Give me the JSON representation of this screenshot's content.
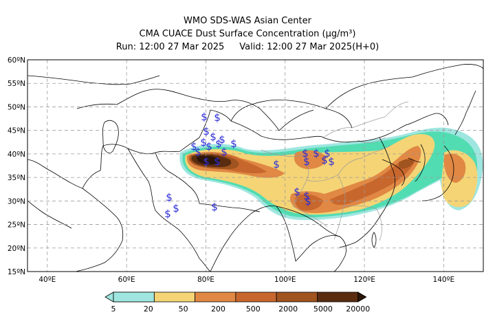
{
  "title": {
    "line1": "WMO SDS-WAS Asian Center",
    "line2": "CMA CUACE Dust Surface Concentration (μg/m³)",
    "run": "Run: 12:00 27 Mar 2025",
    "valid": "Valid: 12:00 27 Mar 2025(H+0)"
  },
  "map": {
    "lat_labels": [
      "60ºN",
      "55ºN",
      "50ºN",
      "45ºN",
      "40ºN",
      "35ºN",
      "30ºN",
      "25ºN",
      "20ºN",
      "15ºN"
    ],
    "lon_labels": [
      "40ºE",
      "60ºE",
      "80ºE",
      "100ºE",
      "120ºE",
      "140ºE"
    ],
    "lon_range": [
      35,
      150
    ],
    "lat_range": [
      15,
      60
    ],
    "grid": true,
    "symbol": "$",
    "symbol_color": "#2a2ad6"
  },
  "legend": {
    "thresholds": [
      "5",
      "20",
      "50",
      "200",
      "500",
      "2000",
      "5000",
      "20000"
    ],
    "colors": [
      "#9fe6e0",
      "#52dcb2",
      "#f5d476",
      "#e08844",
      "#c7672d",
      "#a0541f",
      "#5a2d10",
      "#2b1608"
    ]
  }
}
